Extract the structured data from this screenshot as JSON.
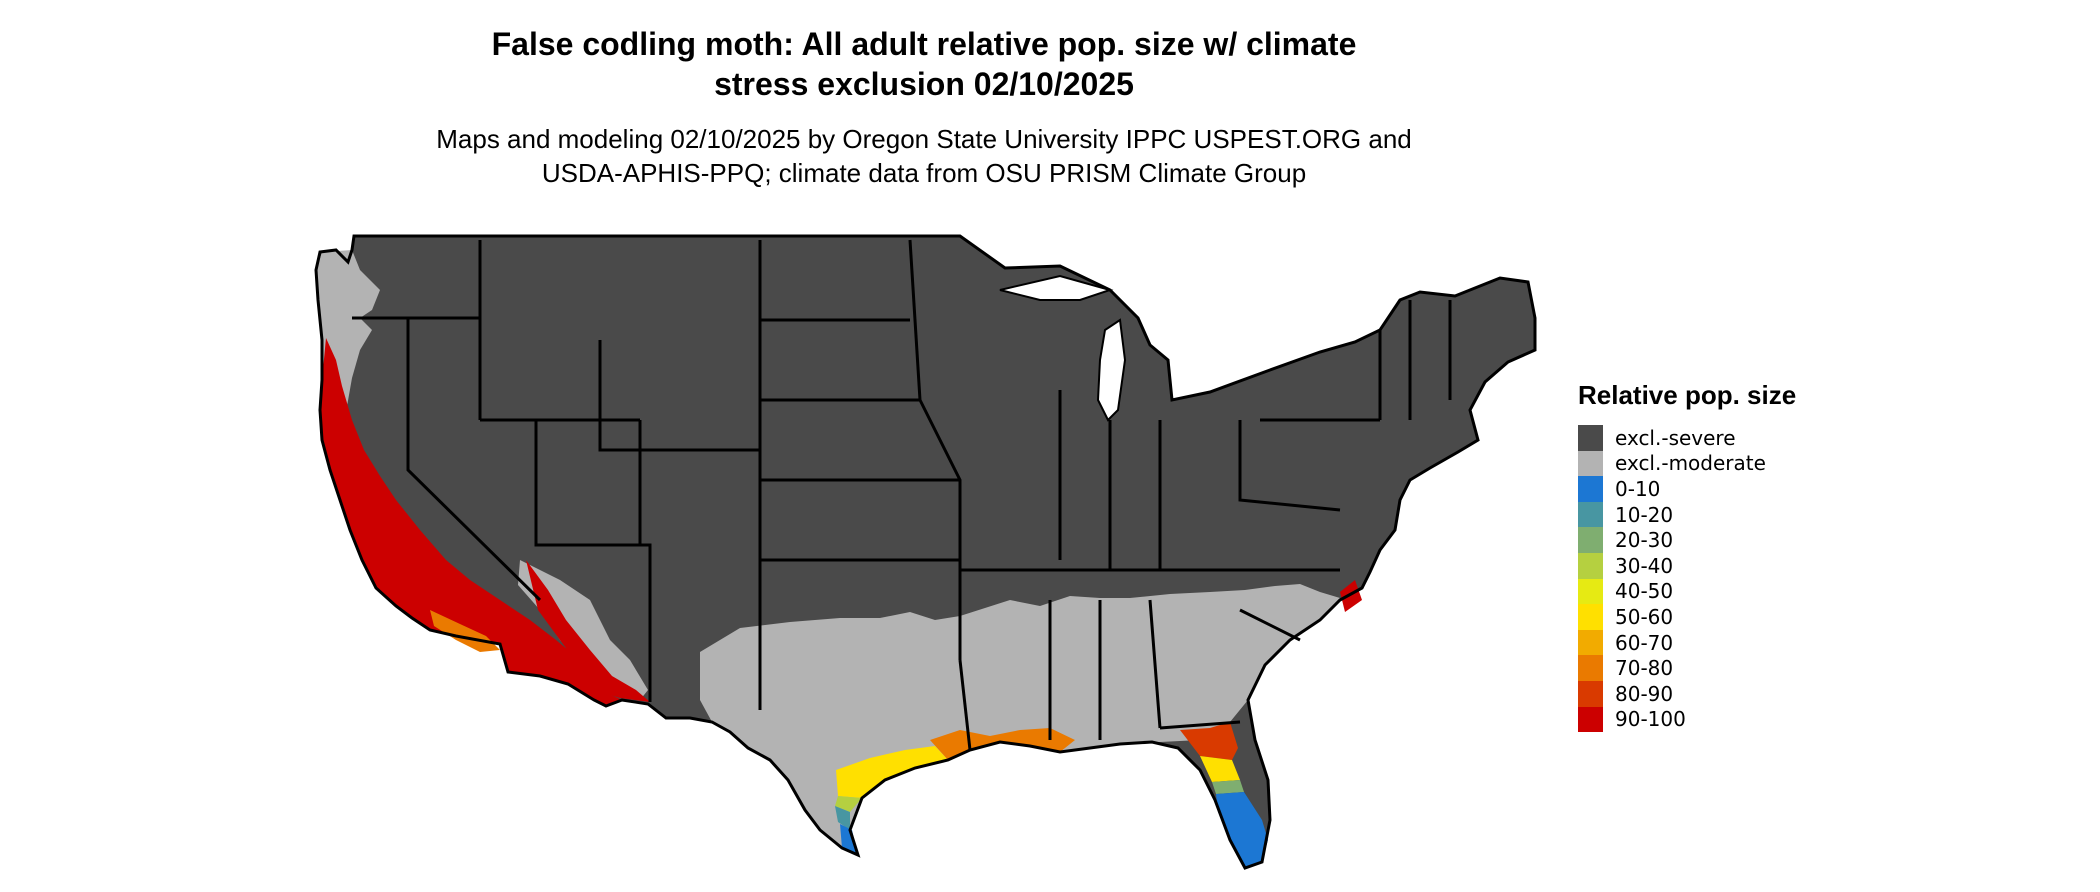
{
  "title_line1": "False codling moth: All adult relative pop. size w/ climate",
  "title_line2": "stress exclusion 02/10/2025",
  "subtitle_line1": "Maps and modeling 02/10/2025 by Oregon State University IPPC USPEST.ORG and",
  "subtitle_line2": "USDA-APHIS-PPQ; climate data from OSU PRISM Climate Group",
  "legend": {
    "title": "Relative pop. size",
    "items": [
      {
        "label": "excl.-severe",
        "color": "#4a4a4a"
      },
      {
        "label": "excl.-moderate",
        "color": "#b3b3b3"
      },
      {
        "label": "0-10",
        "color": "#1c77d3"
      },
      {
        "label": "10-20",
        "color": "#4896a2"
      },
      {
        "label": "20-30",
        "color": "#7fae70"
      },
      {
        "label": "30-40",
        "color": "#b5d040"
      },
      {
        "label": "40-50",
        "color": "#e6ea13"
      },
      {
        "label": "50-60",
        "color": "#ffe000"
      },
      {
        "label": "60-70",
        "color": "#f2ab00"
      },
      {
        "label": "70-80",
        "color": "#ea7a00"
      },
      {
        "label": "80-90",
        "color": "#d93a00"
      },
      {
        "label": "90-100",
        "color": "#cc0000"
      }
    ]
  },
  "map_colors": {
    "severe": "#4a4a4a",
    "moderate": "#b3b3b3",
    "border": "#000000"
  }
}
